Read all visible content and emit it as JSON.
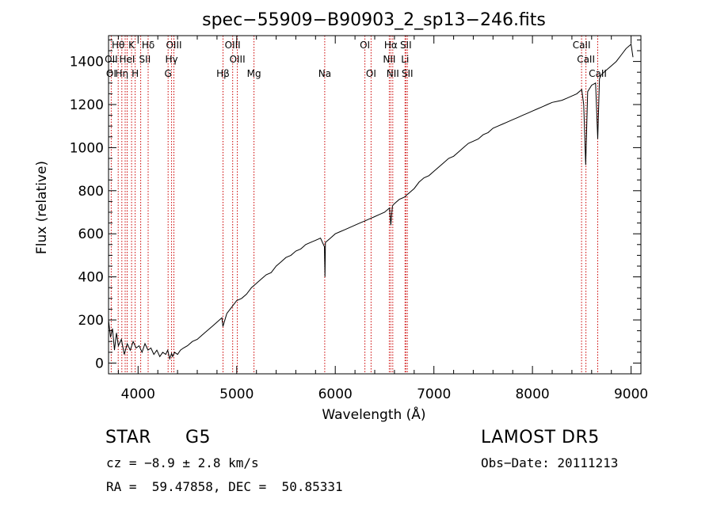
{
  "chart_data": {
    "type": "line",
    "title": "spec−55909−B90903_2_sp13−246.fits",
    "xlabel": "Wavelength (Å)",
    "ylabel": "Flux (relative)",
    "xlim": [
      3700,
      9100
    ],
    "ylim": [
      -50,
      1520
    ],
    "x_ticks": [
      4000,
      5000,
      6000,
      7000,
      8000,
      9000
    ],
    "y_ticks": [
      0,
      200,
      400,
      600,
      800,
      1000,
      1200,
      1400
    ],
    "grid": false,
    "series": [
      {
        "color": "#000000",
        "x": [
          3700,
          3720,
          3740,
          3760,
          3780,
          3800,
          3830,
          3860,
          3890,
          3920,
          3950,
          3980,
          4010,
          4040,
          4070,
          4100,
          4130,
          4160,
          4190,
          4220,
          4250,
          4280,
          4300,
          4320,
          4340,
          4350,
          4370,
          4400,
          4430,
          4460,
          4500,
          4550,
          4600,
          4650,
          4700,
          4750,
          4800,
          4850,
          4860,
          4900,
          4950,
          5000,
          5050,
          5100,
          5150,
          5200,
          5250,
          5300,
          5350,
          5400,
          5450,
          5500,
          5550,
          5600,
          5650,
          5700,
          5750,
          5800,
          5850,
          5890,
          5895,
          5900,
          5950,
          6000,
          6050,
          6100,
          6150,
          6200,
          6250,
          6300,
          6350,
          6400,
          6450,
          6500,
          6550,
          6563,
          6580,
          6600,
          6650,
          6700,
          6750,
          6800,
          6850,
          6900,
          6950,
          7000,
          7050,
          7100,
          7150,
          7200,
          7250,
          7300,
          7350,
          7400,
          7450,
          7500,
          7550,
          7600,
          7650,
          7700,
          7750,
          7800,
          7850,
          7900,
          7950,
          8000,
          8050,
          8100,
          8150,
          8200,
          8250,
          8300,
          8350,
          8400,
          8450,
          8500,
          8520,
          8540,
          8560,
          8600,
          8640,
          8662,
          8680,
          8700,
          8750,
          8800,
          8850,
          8900,
          8950,
          9000,
          9020
        ],
        "y": [
          200,
          120,
          160,
          60,
          140,
          80,
          110,
          40,
          90,
          60,
          100,
          70,
          80,
          50,
          90,
          60,
          70,
          40,
          60,
          30,
          50,
          40,
          60,
          20,
          45,
          30,
          50,
          40,
          60,
          70,
          80,
          100,
          110,
          130,
          150,
          170,
          190,
          210,
          170,
          230,
          260,
          290,
          300,
          320,
          350,
          370,
          390,
          410,
          420,
          450,
          470,
          490,
          500,
          520,
          530,
          550,
          560,
          570,
          580,
          540,
          400,
          560,
          580,
          600,
          610,
          620,
          630,
          640,
          650,
          660,
          670,
          680,
          690,
          700,
          720,
          640,
          730,
          740,
          760,
          770,
          790,
          810,
          840,
          860,
          870,
          890,
          910,
          930,
          950,
          960,
          980,
          1000,
          1020,
          1030,
          1040,
          1060,
          1070,
          1090,
          1100,
          1110,
          1120,
          1130,
          1140,
          1150,
          1160,
          1170,
          1180,
          1190,
          1200,
          1210,
          1215,
          1220,
          1230,
          1240,
          1250,
          1270,
          1200,
          920,
          1260,
          1290,
          1300,
          1040,
          1320,
          1340,
          1360,
          1380,
          1400,
          1430,
          1460,
          1480,
          1420
        ]
      }
    ],
    "lines_red": [
      3727,
      3798,
      3835,
      3869,
      3889,
      3934,
      3970,
      4026,
      4102,
      4304,
      4340,
      4363,
      4861,
      4959,
      5007,
      5175,
      5893,
      6300,
      6363,
      6548,
      6563,
      6583,
      6708,
      6716,
      6731,
      8498,
      8542,
      8662
    ],
    "line_labels": [
      {
        "text": "Hθ",
        "x": 3798,
        "row": 0
      },
      {
        "text": "K",
        "x": 3934,
        "row": 0
      },
      {
        "text": "Hδ",
        "x": 4102,
        "row": 0
      },
      {
        "text": "OIII",
        "x": 4363,
        "row": 0
      },
      {
        "text": "OIII",
        "x": 4959,
        "row": 0
      },
      {
        "text": "OI",
        "x": 6300,
        "row": 0
      },
      {
        "text": "Hα",
        "x": 6563,
        "row": 0
      },
      {
        "text": "SII",
        "x": 6716,
        "row": 0
      },
      {
        "text": "CaII",
        "x": 8498,
        "row": 0
      },
      {
        "text": "OII",
        "x": 3727,
        "row": 1
      },
      {
        "text": "HeI",
        "x": 3889,
        "row": 1
      },
      {
        "text": "SII",
        "x": 4069,
        "row": 1
      },
      {
        "text": "Hγ",
        "x": 4340,
        "row": 1
      },
      {
        "text": "OIII",
        "x": 5007,
        "row": 1
      },
      {
        "text": "NII",
        "x": 6548,
        "row": 1
      },
      {
        "text": "Li",
        "x": 6708,
        "row": 1
      },
      {
        "text": "CaII",
        "x": 8542,
        "row": 1
      },
      {
        "text": "OI",
        "x": 3727,
        "row": 2
      },
      {
        "text": "Hη",
        "x": 3835,
        "row": 2
      },
      {
        "text": "H",
        "x": 3970,
        "row": 2
      },
      {
        "text": "G",
        "x": 4304,
        "row": 2
      },
      {
        "text": "Hβ",
        "x": 4861,
        "row": 2
      },
      {
        "text": "Mg",
        "x": 5175,
        "row": 2
      },
      {
        "text": "Na",
        "x": 5893,
        "row": 2
      },
      {
        "text": "OI",
        "x": 6363,
        "row": 2
      },
      {
        "text": "NII",
        "x": 6583,
        "row": 2
      },
      {
        "text": "SII",
        "x": 6731,
        "row": 2
      },
      {
        "text": "CaII",
        "x": 8662,
        "row": 2
      }
    ],
    "line_color": "#cc0000"
  },
  "info": {
    "object_class": "STAR",
    "subclass": "G5",
    "survey": "LAMOST DR5",
    "cz": "cz = −8.9 ± 2.8 km/s",
    "obs_date": "Obs−Date: 20111213",
    "coords": "RA =  59.47858, DEC =  50.85331"
  }
}
